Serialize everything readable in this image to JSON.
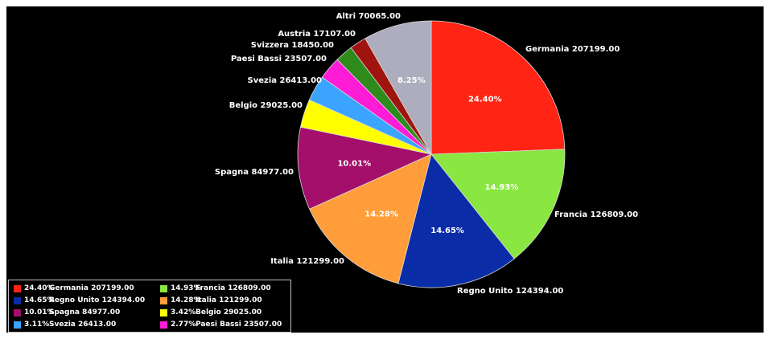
{
  "chart_data": {
    "type": "pie",
    "title": "",
    "slices": [
      {
        "name": "Germania",
        "value": 207199.0,
        "value_label": "207199.00",
        "percent": "24.40%",
        "color": "#ff2414"
      },
      {
        "name": "Francia",
        "value": 126809.0,
        "value_label": "126809.00",
        "percent": "14.93%",
        "color": "#8ae640"
      },
      {
        "name": "Regno Unito",
        "value": 124394.0,
        "value_label": "124394.00",
        "percent": "14.65%",
        "color": "#0a2ca6"
      },
      {
        "name": "Italia",
        "value": 121299.0,
        "value_label": "121299.00",
        "percent": "14.28%",
        "color": "#ff9d3a"
      },
      {
        "name": "Spagna",
        "value": 84977.0,
        "value_label": "84977.00",
        "percent": "10.01%",
        "color": "#a30f6a"
      },
      {
        "name": "Belgio",
        "value": 29025.0,
        "value_label": "29025.00",
        "percent": "3.42%",
        "color": "#ffff00"
      },
      {
        "name": "Svezia",
        "value": 26413.0,
        "value_label": "26413.00",
        "percent": "3.11%",
        "color": "#3aa4ff"
      },
      {
        "name": "Paesi Bassi",
        "value": 23507.0,
        "value_label": "23507.00",
        "percent": "2.77%",
        "color": "#ff1cd6"
      },
      {
        "name": "Svizzera",
        "value": 18450.0,
        "value_label": "18450.00",
        "percent": "",
        "color": "#2f8a1c"
      },
      {
        "name": "Austria",
        "value": 17107.0,
        "value_label": "17107.00",
        "percent": "",
        "color": "#a01410"
      },
      {
        "name": "Altri",
        "value": 70065.0,
        "value_label": "70065.00",
        "percent": "8.25%",
        "color": "#adadbd"
      }
    ],
    "inner_labels": [
      "24.40%",
      "14.93%",
      "14.65%",
      "14.28%",
      "10.01%",
      "8.25%"
    ],
    "legend": {
      "placement": "bottom-left",
      "entries": [
        {
          "percent": "24.40%",
          "text": "Germania 207199.00",
          "color": "#ff2414"
        },
        {
          "percent": "14.93%",
          "text": "Francia 126809.00",
          "color": "#8ae640"
        },
        {
          "percent": "14.65%",
          "text": "Regno Unito 124394.00",
          "color": "#0a2ca6"
        },
        {
          "percent": "14.28%",
          "text": "Italia 121299.00",
          "color": "#ff9d3a"
        },
        {
          "percent": "10.01%",
          "text": "Spagna 84977.00",
          "color": "#a30f6a"
        },
        {
          "percent": "3.42%",
          "text": "Belgio 29025.00",
          "color": "#ffff00"
        },
        {
          "percent": "3.11%",
          "text": "Svezia 26413.00",
          "color": "#3aa4ff"
        },
        {
          "percent": "2.77%",
          "text": "Paesi Bassi 23507.00",
          "color": "#ff1cd6"
        }
      ]
    },
    "background": "#000000"
  }
}
